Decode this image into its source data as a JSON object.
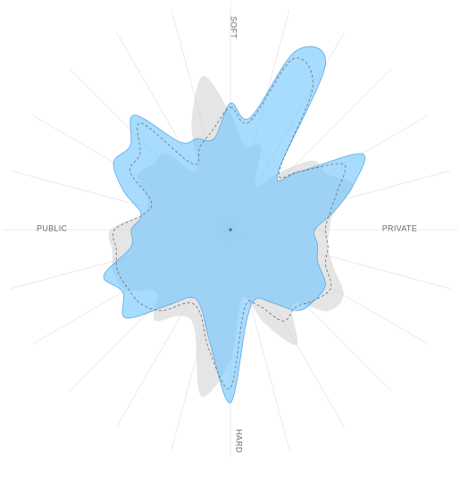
{
  "chart_data": {
    "type": "radar",
    "axis_labels": {
      "top": "SOFT",
      "right": "PRIVATE",
      "bottom": "HARD",
      "left": "PUBLIC"
    },
    "angles_deg": [
      0,
      10,
      20,
      30,
      40,
      50,
      60,
      70,
      80,
      90,
      100,
      110,
      120,
      130,
      140,
      150,
      160,
      170,
      180,
      190,
      200,
      210,
      220,
      230,
      240,
      250,
      260,
      270,
      280,
      290,
      300,
      310,
      320,
      330,
      340,
      350
    ],
    "r_max": 1.0,
    "series": [
      {
        "style": "gray-fill",
        "color": "#cfcfcf",
        "values": [
          0.55,
          0.4,
          0.42,
          0.24,
          0.35,
          0.51,
          0.53,
          0.62,
          0.5,
          0.47,
          0.47,
          0.52,
          0.62,
          0.6,
          0.46,
          0.63,
          0.47,
          0.33,
          0.62,
          0.8,
          0.5,
          0.47,
          0.56,
          0.46,
          0.57,
          0.59,
          0.57,
          0.57,
          0.42,
          0.42,
          0.51,
          0.48,
          0.47,
          0.32,
          0.54,
          0.74
        ]
      },
      {
        "style": "blue-fill",
        "color": "#6ec4ff",
        "values": [
          0.6,
          0.54,
          0.9,
          0.9,
          0.35,
          0.43,
          0.72,
          0.62,
          0.5,
          0.4,
          0.42,
          0.44,
          0.52,
          0.52,
          0.5,
          0.4,
          0.35,
          0.44,
          0.82,
          0.55,
          0.4,
          0.37,
          0.47,
          0.65,
          0.59,
          0.64,
          0.48,
          0.47,
          0.43,
          0.54,
          0.64,
          0.62,
          0.71,
          0.48,
          0.46,
          0.44
        ]
      },
      {
        "style": "dashed-line",
        "color": "#777777",
        "values": [
          0.58,
          0.52,
          0.86,
          0.78,
          0.36,
          0.43,
          0.62,
          0.54,
          0.48,
          0.45,
          0.47,
          0.48,
          0.55,
          0.52,
          0.48,
          0.5,
          0.38,
          0.38,
          0.75,
          0.58,
          0.42,
          0.4,
          0.5,
          0.55,
          0.56,
          0.57,
          0.55,
          0.55,
          0.42,
          0.4,
          0.55,
          0.56,
          0.66,
          0.36,
          0.42,
          0.48
        ]
      }
    ]
  }
}
